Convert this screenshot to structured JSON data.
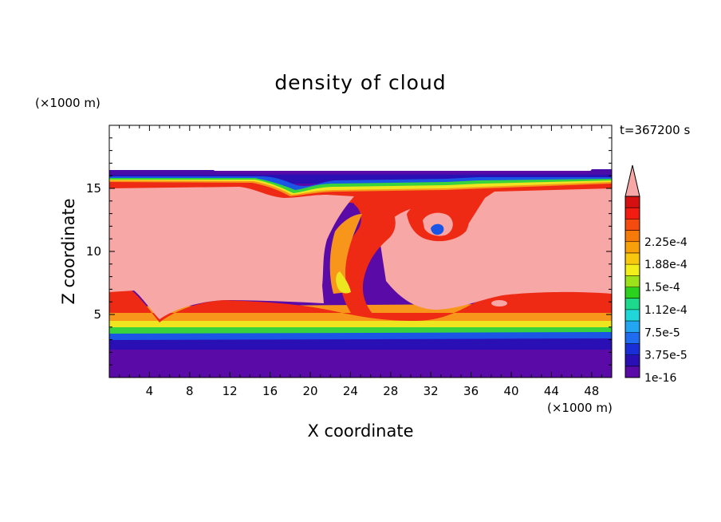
{
  "chart_data": {
    "type": "heatmap",
    "title": "density of cloud",
    "xlabel": "X coordinate",
    "ylabel": "Z coordinate",
    "x_unit": "(×1000 m)",
    "y_unit": "(×1000 m)",
    "time_label": "t=367200 s",
    "xlim": [
      0,
      50
    ],
    "ylim": [
      0,
      20
    ],
    "x_ticks": [
      4,
      8,
      12,
      16,
      20,
      24,
      28,
      32,
      36,
      40,
      44,
      48
    ],
    "y_ticks": [
      5,
      10,
      15
    ],
    "colorbar": {
      "labels": [
        "1e-16",
        "3.75e-5",
        "7.5e-5",
        "1.12e-4",
        "1.5e-4",
        "1.88e-4",
        "2.25e-4"
      ],
      "colors": [
        "#5a0aa6",
        "#2a0fb4",
        "#1a2ed8",
        "#1e6cf0",
        "#22a6f2",
        "#1fd6d8",
        "#1cd98e",
        "#2ad21e",
        "#9be21a",
        "#f2ee1a",
        "#f8c80e",
        "#f8a00a",
        "#f67a0a",
        "#f44c0e",
        "#f21c10",
        "#d41010"
      ],
      "extend_color": "#f7a7a5"
    },
    "colors": {
      "background": "#5a0aa6",
      "core": "#f7a7a5",
      "red": "#ee2a14",
      "orange": "#f7961a",
      "yellow": "#ede51f",
      "green": "#37d23c",
      "cyan": "#1fd6c8",
      "blue": "#1a55e6",
      "deep_blue": "#2a10b4"
    }
  }
}
